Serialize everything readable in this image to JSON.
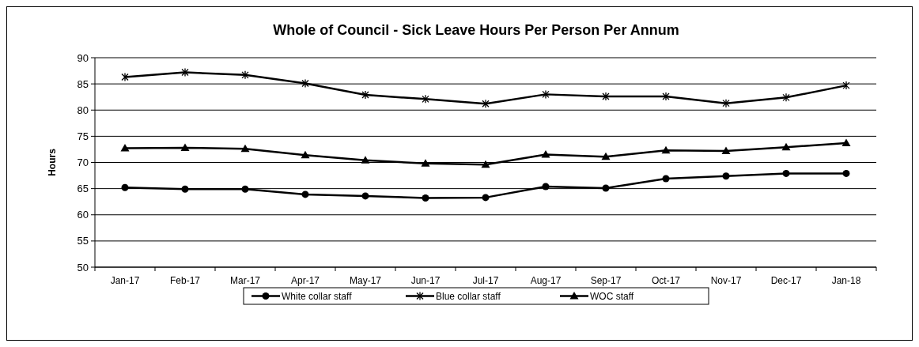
{
  "chart_data": {
    "type": "line",
    "title": "Whole of Council - Sick Leave Hours Per Person Per Annum",
    "ylabel": "Hours",
    "categories": [
      "Jan-17",
      "Feb-17",
      "Mar-17",
      "Apr-17",
      "May-17",
      "Jun-17",
      "Jul-17",
      "Aug-17",
      "Sep-17",
      "Oct-17",
      "Nov-17",
      "Dec-17",
      "Jan-18"
    ],
    "series": [
      {
        "name": "White collar staff",
        "color": "#000000",
        "marker": "circle",
        "values": [
          65.2,
          64.9,
          64.9,
          63.9,
          63.6,
          63.2,
          63.3,
          65.4,
          65.1,
          66.9,
          67.4,
          67.9,
          67.9
        ]
      },
      {
        "name": "Blue collar staff",
        "color": "#000000",
        "marker": "cross",
        "values": [
          86.3,
          87.2,
          86.7,
          85.1,
          82.9,
          82.1,
          81.2,
          83.0,
          82.6,
          82.6,
          81.3,
          82.4,
          84.7
        ]
      },
      {
        "name": "WOC staff",
        "color": "#000000",
        "marker": "triangle",
        "values": [
          72.7,
          72.8,
          72.6,
          71.4,
          70.4,
          69.8,
          69.6,
          71.5,
          71.1,
          72.3,
          72.2,
          72.9,
          73.7
        ]
      }
    ],
    "ylim": [
      50,
      90
    ],
    "yticks": [
      50,
      55,
      60,
      65,
      70,
      75,
      80,
      85,
      90
    ],
    "grid": "y",
    "legend": "bottom"
  }
}
